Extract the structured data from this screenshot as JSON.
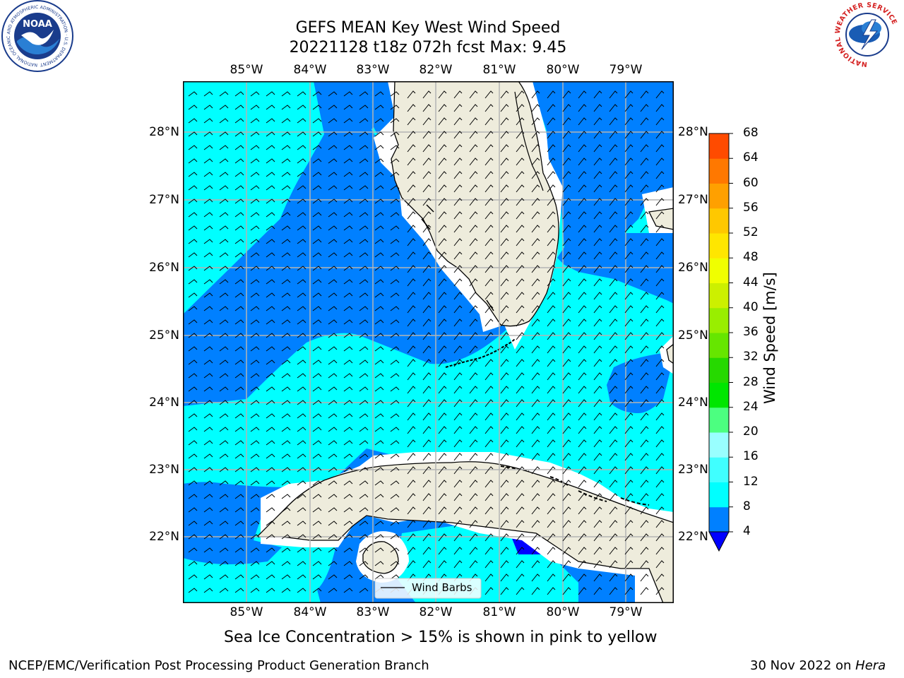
{
  "header": {
    "title_line1": "GEFS MEAN Key West Wind Speed",
    "title_line2": "20221128 t18z 072h fcst   Max: 9.45",
    "noaa_logo_text": "NOAA",
    "noaa_ring_text": "NATIONAL OCEANIC AND ATMOSPHERIC ADMINISTRATION · U.S. DEPARTMENT OF COMMERCE",
    "nws_ring_text": "NATIONAL WEATHER SERVICE"
  },
  "map": {
    "lon_labels": [
      "85°W",
      "84°W",
      "83°W",
      "82°W",
      "81°W",
      "80°W",
      "79°W"
    ],
    "lat_labels": [
      "28°N",
      "27°N",
      "26°N",
      "25°N",
      "24°N",
      "23°N",
      "22°N"
    ],
    "legend_label": "Wind Barbs",
    "colors": {
      "land": "#eeecdc",
      "cyan": "#00ffff",
      "blue": "#0080ff",
      "darkblue": "#0000ff",
      "grid": "#b4b4b4"
    }
  },
  "colorbar": {
    "label": "Wind Speed [m/s]",
    "ticks": [
      "4",
      "8",
      "12",
      "16",
      "20",
      "24",
      "28",
      "32",
      "36",
      "40",
      "44",
      "48",
      "52",
      "56",
      "60",
      "64",
      "68"
    ],
    "colors": [
      "#0080ff",
      "#00ffff",
      "#40ffff",
      "#99ffff",
      "#4cff80",
      "#00e600",
      "#26d900",
      "#66e600",
      "#99ee00",
      "#ccf000",
      "#f0ff00",
      "#ffe600",
      "#ffc800",
      "#ffa000",
      "#ff7800",
      "#ff4b00",
      "#ff0000"
    ],
    "extend_color": "#0000ff"
  },
  "caption": "Sea Ice Concentration > 15% is shown in pink to yellow",
  "footer": {
    "left": "NCEP/EMC/Verification Post Processing Product Generation Branch",
    "date": "30 Nov 2022 on ",
    "machine": "Hera"
  }
}
